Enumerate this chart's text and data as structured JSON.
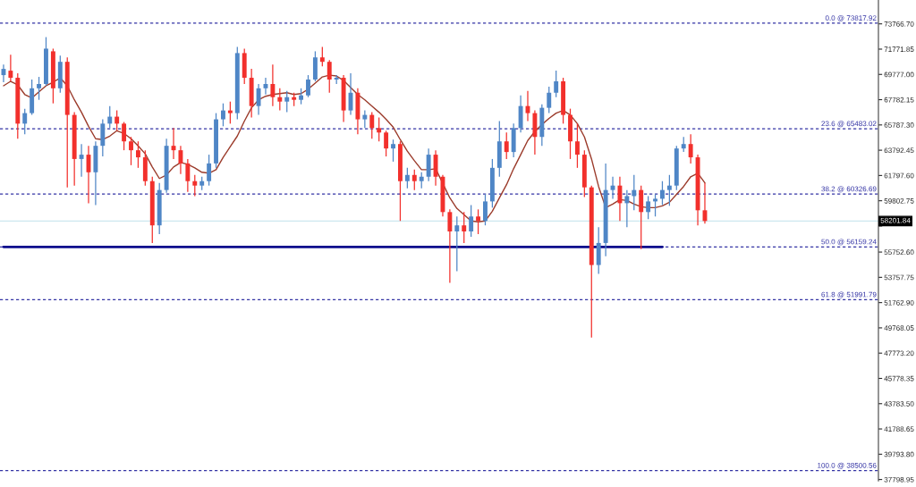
{
  "chart_data": {
    "type": "candlestick",
    "categories": [
      null,
      null,
      null,
      null,
      null,
      null,
      null,
      null,
      null,
      null,
      null,
      null,
      null,
      null,
      null,
      null,
      null,
      null,
      null,
      null,
      null,
      null,
      null,
      null,
      null,
      null,
      null,
      null,
      null,
      null,
      null,
      null,
      null,
      null,
      null,
      null,
      null,
      null,
      null,
      null,
      null,
      null,
      null,
      null,
      null,
      null,
      null,
      null,
      null,
      null,
      null,
      null,
      null,
      null,
      null,
      null,
      null,
      null,
      null,
      null,
      null,
      null,
      null,
      null,
      null,
      null,
      null,
      null,
      null,
      null,
      null,
      null,
      null,
      null,
      null,
      null,
      null,
      null,
      null,
      null,
      null,
      null,
      null,
      null,
      null,
      null,
      null,
      null,
      null,
      null,
      null,
      null,
      null,
      null,
      null,
      null,
      null,
      null,
      null,
      null,
      null,
      null,
      null,
      null,
      null,
      null,
      null,
      null,
      null,
      null,
      null,
      null,
      null,
      null,
      null,
      null,
      null,
      null,
      null,
      null,
      null,
      null,
      null,
      null
    ],
    "series": [
      {
        "ohlc": [
          [
            69720,
            70560,
            69160,
            70210
          ],
          [
            70070,
            71330,
            69230,
            69510
          ],
          [
            69510,
            69860,
            64700,
            65890
          ],
          [
            65890,
            67070,
            65050,
            66720
          ],
          [
            66720,
            69370,
            66580,
            68680
          ],
          [
            68680,
            69580,
            67770,
            69020
          ],
          [
            69020,
            72720,
            68880,
            71810
          ],
          [
            71600,
            71810,
            67490,
            68680
          ],
          [
            68680,
            71260,
            68330,
            70770
          ],
          [
            70770,
            71120,
            60860,
            66580
          ],
          [
            66580,
            66790,
            61000,
            63100
          ],
          [
            63100,
            64280,
            61700,
            63440
          ],
          [
            63440,
            64140,
            59610,
            62050
          ],
          [
            62050,
            64490,
            59470,
            64140
          ],
          [
            64140,
            66230,
            63300,
            65890
          ],
          [
            65890,
            67280,
            65540,
            66440
          ],
          [
            66440,
            66930,
            65330,
            65890
          ],
          [
            65890,
            66020,
            63790,
            64490
          ],
          [
            64490,
            64840,
            62610,
            63790
          ],
          [
            63790,
            64490,
            62400,
            63230
          ],
          [
            63230,
            63790,
            61000,
            61350
          ],
          [
            61350,
            61700,
            56470,
            57860
          ],
          [
            57860,
            61210,
            57170,
            60650
          ],
          [
            60650,
            64700,
            60440,
            64140
          ],
          [
            64140,
            65540,
            63100,
            63790
          ],
          [
            63790,
            64140,
            61910,
            62750
          ],
          [
            62750,
            63100,
            60510,
            61350
          ],
          [
            61350,
            61840,
            60170,
            61000
          ],
          [
            61000,
            61700,
            60650,
            61350
          ],
          [
            61350,
            63440,
            61000,
            62750
          ],
          [
            62750,
            66720,
            62400,
            66230
          ],
          [
            66230,
            67490,
            65680,
            66930
          ],
          [
            66930,
            67630,
            65890,
            66720
          ],
          [
            66720,
            71950,
            66230,
            71460
          ],
          [
            71460,
            71810,
            69020,
            69510
          ],
          [
            69510,
            70210,
            66370,
            67280
          ],
          [
            67280,
            69020,
            66580,
            68680
          ],
          [
            68680,
            69510,
            68190,
            69020
          ],
          [
            69020,
            70560,
            67280,
            67980
          ],
          [
            67980,
            68680,
            66930,
            67630
          ],
          [
            67630,
            68470,
            66790,
            67980
          ],
          [
            67980,
            68330,
            67280,
            67770
          ],
          [
            67770,
            68680,
            67420,
            68120
          ],
          [
            68120,
            69720,
            67980,
            69370
          ],
          [
            69370,
            71600,
            69230,
            71120
          ],
          [
            71120,
            71950,
            70420,
            70770
          ],
          [
            70770,
            70910,
            68330,
            69370
          ],
          [
            69370,
            69720,
            69020,
            69510
          ],
          [
            69510,
            69720,
            66020,
            66930
          ],
          [
            66930,
            69860,
            66580,
            68330
          ],
          [
            68330,
            68680,
            65050,
            66230
          ],
          [
            66230,
            66930,
            65540,
            66580
          ],
          [
            66580,
            66790,
            64700,
            65540
          ],
          [
            65540,
            66370,
            64490,
            65190
          ],
          [
            65190,
            65330,
            63300,
            63930
          ],
          [
            63930,
            64630,
            62890,
            64280
          ],
          [
            64280,
            64490,
            58210,
            61350
          ],
          [
            61350,
            62400,
            60790,
            61840
          ],
          [
            61840,
            62260,
            60650,
            61350
          ],
          [
            61350,
            62050,
            60790,
            61700
          ],
          [
            61700,
            63930,
            61350,
            63440
          ],
          [
            63440,
            63790,
            61000,
            61700
          ],
          [
            61700,
            61840,
            58560,
            58910
          ],
          [
            58910,
            59120,
            53330,
            57380
          ],
          [
            57380,
            58560,
            54240,
            57860
          ],
          [
            57860,
            58910,
            56470,
            57380
          ],
          [
            57380,
            59470,
            56960,
            58560
          ],
          [
            58560,
            59120,
            57170,
            58210
          ],
          [
            58210,
            60310,
            57860,
            59750
          ],
          [
            59750,
            63100,
            59260,
            62400
          ],
          [
            62400,
            66090,
            61700,
            64490
          ],
          [
            64490,
            65190,
            63100,
            63650
          ],
          [
            63650,
            65890,
            63230,
            65540
          ],
          [
            65540,
            68120,
            65190,
            67280
          ],
          [
            67280,
            68470,
            66090,
            66720
          ],
          [
            66720,
            66930,
            63440,
            64840
          ],
          [
            64840,
            67420,
            64140,
            67140
          ],
          [
            67140,
            68810,
            66720,
            68330
          ],
          [
            68330,
            70070,
            67980,
            69230
          ],
          [
            69230,
            69510,
            65890,
            66580
          ],
          [
            66580,
            67070,
            63100,
            64490
          ],
          [
            64490,
            65890,
            62400,
            63440
          ],
          [
            63440,
            63790,
            60100,
            60860
          ],
          [
            60860,
            61000,
            49010,
            54730
          ],
          [
            54730,
            57720,
            54030,
            56470
          ],
          [
            56470,
            62750,
            55420,
            60650
          ],
          [
            60650,
            61700,
            59960,
            61000
          ],
          [
            61000,
            61700,
            58210,
            59610
          ],
          [
            59610,
            60650,
            57720,
            60170
          ],
          [
            60170,
            61840,
            59050,
            60650
          ],
          [
            60650,
            61000,
            55980,
            58910
          ],
          [
            58910,
            60170,
            58350,
            59750
          ],
          [
            59750,
            60310,
            58560,
            59960
          ],
          [
            59960,
            61350,
            59470,
            60650
          ],
          [
            60650,
            61840,
            59400,
            61000
          ],
          [
            61000,
            64140,
            60650,
            63930
          ],
          [
            63930,
            64840,
            63650,
            64280
          ],
          [
            64280,
            65050,
            62750,
            63230
          ],
          [
            63230,
            63440,
            57860,
            59050
          ],
          [
            59050,
            61210,
            58000,
            58201.84
          ],
          null,
          null,
          null,
          null,
          null,
          null,
          null,
          null,
          null,
          null,
          null,
          null,
          null,
          null,
          null,
          null,
          null,
          null,
          null,
          null,
          null,
          null,
          null,
          null
        ],
        "colors": [
          "#4f86c6",
          "#f2302c",
          "#f2302c",
          "#4f86c6",
          "#4f86c6",
          "#4f86c6",
          "#4f86c6",
          "#f2302c",
          "#4f86c6",
          "#f2302c",
          "#f2302c",
          "#4f86c6",
          "#f2302c",
          "#4f86c6",
          "#4f86c6",
          "#4f86c6",
          "#f2302c",
          "#f2302c",
          "#f2302c",
          "#f2302c",
          "#f2302c",
          "#f2302c",
          "#4f86c6",
          "#4f86c6",
          "#f2302c",
          "#f2302c",
          "#f2302c",
          "#f2302c",
          "#4f86c6",
          "#4f86c6",
          "#4f86c6",
          "#4f86c6",
          "#f2302c",
          "#4f86c6",
          "#f2302c",
          "#f2302c",
          "#4f86c6",
          "#4f86c6",
          "#f2302c",
          "#f2302c",
          "#4f86c6",
          "#f2302c",
          "#4f86c6",
          "#4f86c6",
          "#4f86c6",
          "#f2302c",
          "#f2302c",
          "#4f86c6",
          "#f2302c",
          "#4f86c6",
          "#f2302c",
          "#4f86c6",
          "#f2302c",
          "#f2302c",
          "#f2302c",
          "#4f86c6",
          "#f2302c",
          "#4f86c6",
          "#f2302c",
          "#4f86c6",
          "#4f86c6",
          "#f2302c",
          "#f2302c",
          "#f2302c",
          "#4f86c6",
          "#f2302c",
          "#4f86c6",
          "#f2302c",
          "#4f86c6",
          "#4f86c6",
          "#4f86c6",
          "#f2302c",
          "#4f86c6",
          "#4f86c6",
          "#f2302c",
          "#f2302c",
          "#4f86c6",
          "#4f86c6",
          "#4f86c6",
          "#f2302c",
          "#f2302c",
          "#f2302c",
          "#f2302c",
          "#f2302c",
          "#4f86c6",
          "#4f86c6",
          "#4f86c6",
          "#f2302c",
          "#4f86c6",
          "#4f86c6",
          "#f2302c",
          "#4f86c6",
          "#4f86c6",
          "#4f86c6",
          "#4f86c6",
          "#4f86c6",
          "#4f86c6",
          "#f2302c",
          "#f2302c",
          "#f2302c",
          null,
          null,
          null,
          null,
          null,
          null,
          null,
          null,
          null,
          null,
          null,
          null,
          null,
          null,
          null,
          null,
          null,
          null,
          null,
          null,
          null,
          null,
          null,
          null
        ]
      },
      {
        "type": "line",
        "color": "#9b3b2b",
        "values": [
          68880,
          69230,
          68950,
          68190,
          67910,
          68400,
          68880,
          69160,
          69510,
          68880,
          67770,
          66790,
          65680,
          64700,
          64630,
          64910,
          65330,
          65120,
          64700,
          64140,
          63510,
          62470,
          61560,
          61840,
          62470,
          62820,
          62680,
          62400,
          62050,
          61980,
          62260,
          63230,
          64070,
          64910,
          66090,
          67140,
          67770,
          68050,
          68190,
          68260,
          68330,
          68190,
          68260,
          68610,
          69090,
          69580,
          69720,
          69650,
          69300,
          68740,
          68190,
          67770,
          67280,
          66790,
          66230,
          65610,
          64630,
          63720,
          62960,
          62260,
          62260,
          62330,
          null,
          60030,
          59190,
          58700,
          58210,
          58140,
          58210,
          58980,
          60030,
          61070,
          62330,
          63440,
          64560,
          65260,
          65820,
          66300,
          66720,
          66930,
          66580,
          65890,
          64840,
          63100,
          60930,
          59260,
          59540,
          59890,
          59820,
          59540,
          59330,
          59260,
          59260,
          59400,
          59680,
          60310,
          60930,
          61700,
          61980,
          61210,
          null,
          null,
          null,
          null,
          null,
          null,
          null,
          null,
          null,
          null,
          null,
          null,
          null,
          null,
          null,
          null,
          null,
          null,
          null,
          null,
          null,
          null,
          null,
          null
        ]
      },
      {
        "type": "line",
        "color": "#0a0a8c",
        "values": [
          56160,
          56160,
          56160,
          56160,
          56160,
          56160,
          56160,
          56160,
          56160,
          56160,
          56160,
          56160,
          56160,
          56160,
          56160,
          56160,
          56160,
          56160,
          56160,
          56160,
          56160,
          56160,
          56160,
          56160,
          56160,
          56160,
          56160,
          56160,
          56160,
          56160,
          56160,
          56160,
          56160,
          56160,
          56160,
          56160,
          56160,
          56160,
          56160,
          56160,
          56160,
          56160,
          56160,
          56160,
          56160,
          56160,
          56160,
          56160,
          56160,
          56160,
          56160,
          56160,
          56160,
          56160,
          56160,
          56160,
          56160,
          56160,
          56160,
          56160,
          56160,
          56160,
          56160,
          56160,
          56160,
          56160,
          56160,
          56160,
          56160,
          56160,
          56160,
          56160,
          56160,
          56160,
          56160,
          56160,
          56160,
          56160,
          56160,
          56160,
          56160,
          56160,
          56160,
          56160,
          56160,
          56160,
          56160,
          56160,
          56160,
          56160,
          56160,
          56160,
          56160,
          56160,
          null,
          null,
          null,
          null,
          null,
          null,
          null,
          null,
          null,
          null,
          null,
          null,
          null,
          null,
          null,
          null,
          null,
          null,
          null,
          null,
          null,
          null,
          null,
          null,
          null,
          null,
          null,
          null,
          null,
          null
        ]
      }
    ],
    "ylim": [
      37700,
      75650
    ],
    "yticks": [
      {
        "value": 73766.7,
        "label": "73766.70"
      },
      71771.85,
      {
        "value": 69777.0,
        "label": "69777.00"
      },
      67782.15,
      {
        "value": 65787.3,
        "label": "65787.30"
      },
      63792.45,
      {
        "value": 61797.6,
        "label": "61797.60"
      },
      59802.75,
      {
        "value": 57807.9,
        "label": null
      },
      {
        "value": 55752.6,
        "label": "55752.60"
      },
      53757.75,
      {
        "value": 51762.9,
        "label": "51762.90"
      },
      49768.05,
      {
        "value": 47773.2,
        "label": "47773.20"
      },
      45778.35,
      {
        "value": 43783.5,
        "label": "43783.50"
      },
      41788.65,
      {
        "value": 39793.8,
        "label": "39793.80"
      },
      37798.95
    ],
    "ref_lines": [
      {
        "axis": "y",
        "value": 73817.92,
        "label": "0.0 @ 73817.92",
        "color": "#3535a5",
        "line_style": "dashed"
      },
      {
        "axis": "y",
        "value": 65483.02,
        "label": "23.6 @ 65483.02",
        "color": "#3535a5",
        "line_style": "dashed"
      },
      {
        "axis": "y",
        "value": 60326.69,
        "label": "38.2 @ 60326.69",
        "color": "#3535a5",
        "line_style": "dashed"
      },
      {
        "axis": "y",
        "value": 56159.24,
        "label": "50.0 @ 56159.24",
        "color": "#3535a5",
        "line_style": "dashed"
      },
      {
        "axis": "y",
        "value": 51991.79,
        "label": "61.8 @ 51991.79",
        "color": "#3535a5",
        "line_style": "dashed"
      },
      {
        "axis": "y",
        "value": 38500.56,
        "label": "100.0 @ 38500.56",
        "color": "#3535a5",
        "line_style": "dashed"
      },
      {
        "axis": "y",
        "value": 58201.84,
        "label": "58201.84",
        "color": "#cde7ee",
        "line_style": "solid"
      }
    ],
    "tick_labels": "y"
  }
}
